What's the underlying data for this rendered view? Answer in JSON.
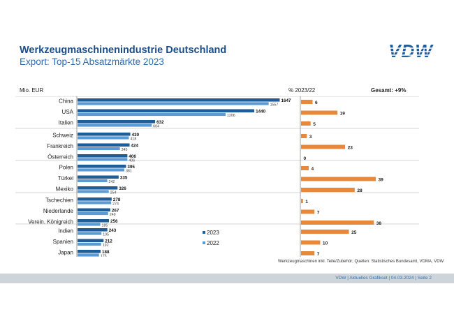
{
  "header": {
    "title": "Werkzeugmaschinenindustrie Deutschland",
    "subtitle": "Export: Top-15 Absatzmärkte 2023",
    "logo_text": "VDW"
  },
  "columns": {
    "unit_label": "Mio. EUR",
    "pct_label": "% 2023/22",
    "total_label": "Gesamt: +9%"
  },
  "legend": {
    "y2023": "2023",
    "y2022": "2022"
  },
  "footnote": "Werkzeugmaschinen inkl. Teile/Zubehör;  Quellen: Statistisches Bundesamt, VDMA, VDW",
  "footer": {
    "text": "VDW  |  Aktuelles Grafikset |  04.03.2024    |  Seite  2"
  },
  "colors": {
    "bar2023": "#1f5d99",
    "bar2022": "#5b9bd5",
    "pct": "#e8883a",
    "brand": "#1f5d99"
  },
  "chart_data": {
    "type": "bar",
    "orientation": "horizontal",
    "title": "Export: Top-15 Absatzmärkte 2023",
    "unit": "Mio. EUR",
    "categories": [
      "China",
      "USA",
      "Italien",
      "Schweiz",
      "Frankreich",
      "Österreich",
      "Polen",
      "Türkei",
      "Mexiko",
      "Tschechien",
      "Niederlande",
      "Verein. Königreich",
      "Indien",
      "Spanien",
      "Japan"
    ],
    "groups": [
      [
        0,
        1,
        2
      ],
      [
        3,
        4,
        5
      ],
      [
        6,
        7,
        8
      ],
      [
        9,
        10,
        11
      ],
      [
        12,
        13,
        14
      ]
    ],
    "series": [
      {
        "name": "2023",
        "values": [
          1647,
          1440,
          632,
          430,
          424,
          406,
          395,
          335,
          326,
          278,
          267,
          256,
          243,
          212,
          188
        ]
      },
      {
        "name": "2022",
        "values": [
          1557,
          1206,
          604,
          418,
          345,
          406,
          381,
          242,
          254,
          274,
          249,
          185,
          195,
          192,
          175
        ]
      }
    ],
    "pct_change": {
      "name": "% 2023/22",
      "values": [
        6,
        19,
        5,
        3,
        23,
        0,
        4,
        39,
        28,
        1,
        7,
        38,
        25,
        10,
        7
      ],
      "total": "Gesamt: +9%"
    }
  }
}
